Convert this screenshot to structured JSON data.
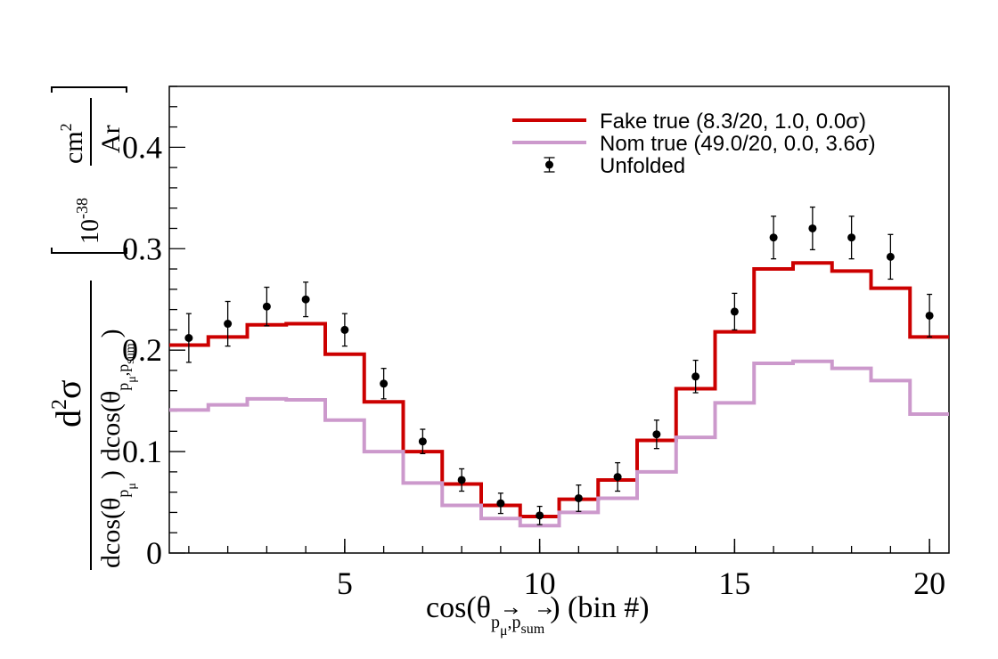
{
  "chart_data": {
    "type": "line",
    "style": "step-histogram",
    "bins": [
      1,
      2,
      3,
      4,
      5,
      6,
      7,
      8,
      9,
      10,
      11,
      12,
      13,
      14,
      15,
      16,
      17,
      18,
      19,
      20
    ],
    "xlim": [
      0.5,
      20.5
    ],
    "ylim": [
      0,
      0.46
    ],
    "x_ticks": [
      5,
      10,
      15,
      20
    ],
    "y_ticks": [
      0,
      0.1,
      0.2,
      0.3,
      0.4
    ],
    "x_tick_labels": [
      "5",
      "10",
      "15",
      "20"
    ],
    "y_tick_labels": [
      "0",
      "0.1",
      "0.2",
      "0.3",
      "0.4"
    ],
    "xlabel": {
      "main": "cos(θ",
      "sub1": "p",
      "sub1_sub": "μ",
      "sep": ",",
      "sub2": "p",
      "sub2_sub": "sum",
      "tail": ") (bin #)"
    },
    "ylabel": {
      "numerator": "d",
      "numerator_sup": "2",
      "numerator_sigma": "σ",
      "den1_main": "dcos(θ",
      "den1_sub": "p",
      "den1_subsub": "μ",
      "den1_tail": ")",
      "den2_main": "dcos(θ",
      "den2_sub1": "p",
      "den2_subsub1": "μ",
      "den2_sep": ",",
      "den2_sub2": "p",
      "den2_subsub2": "sum",
      "den2_tail": ")",
      "unit_prefix": "10",
      "unit_exp": "-38",
      "unit_num": "cm",
      "unit_num_sup": "2",
      "unit_den": "Ar"
    },
    "legend_position": "top-right",
    "series": [
      {
        "name": "Fake true (8.3/20, 1.0, 0.0σ)",
        "kind": "step",
        "color": "#cc0000",
        "values": [
          0.205,
          0.213,
          0.225,
          0.226,
          0.196,
          0.149,
          0.1,
          0.068,
          0.047,
          0.036,
          0.053,
          0.072,
          0.111,
          0.162,
          0.218,
          0.28,
          0.286,
          0.278,
          0.261,
          0.213
        ]
      },
      {
        "name": "Nom true (49.0/20, 0.0, 3.6σ)",
        "kind": "step",
        "color": "#cc99cc",
        "values": [
          0.141,
          0.146,
          0.152,
          0.151,
          0.131,
          0.1,
          0.069,
          0.047,
          0.034,
          0.027,
          0.04,
          0.054,
          0.08,
          0.114,
          0.148,
          0.187,
          0.189,
          0.182,
          0.17,
          0.137
        ]
      },
      {
        "name": "Unfolded",
        "kind": "points",
        "color": "#000000",
        "values": [
          0.212,
          0.226,
          0.243,
          0.25,
          0.22,
          0.167,
          0.11,
          0.072,
          0.049,
          0.037,
          0.054,
          0.075,
          0.117,
          0.174,
          0.238,
          0.311,
          0.32,
          0.311,
          0.292,
          0.234
        ],
        "errors": [
          0.024,
          0.022,
          0.019,
          0.017,
          0.016,
          0.015,
          0.012,
          0.011,
          0.01,
          0.009,
          0.013,
          0.014,
          0.014,
          0.016,
          0.018,
          0.021,
          0.021,
          0.021,
          0.022,
          0.021
        ]
      }
    ]
  }
}
